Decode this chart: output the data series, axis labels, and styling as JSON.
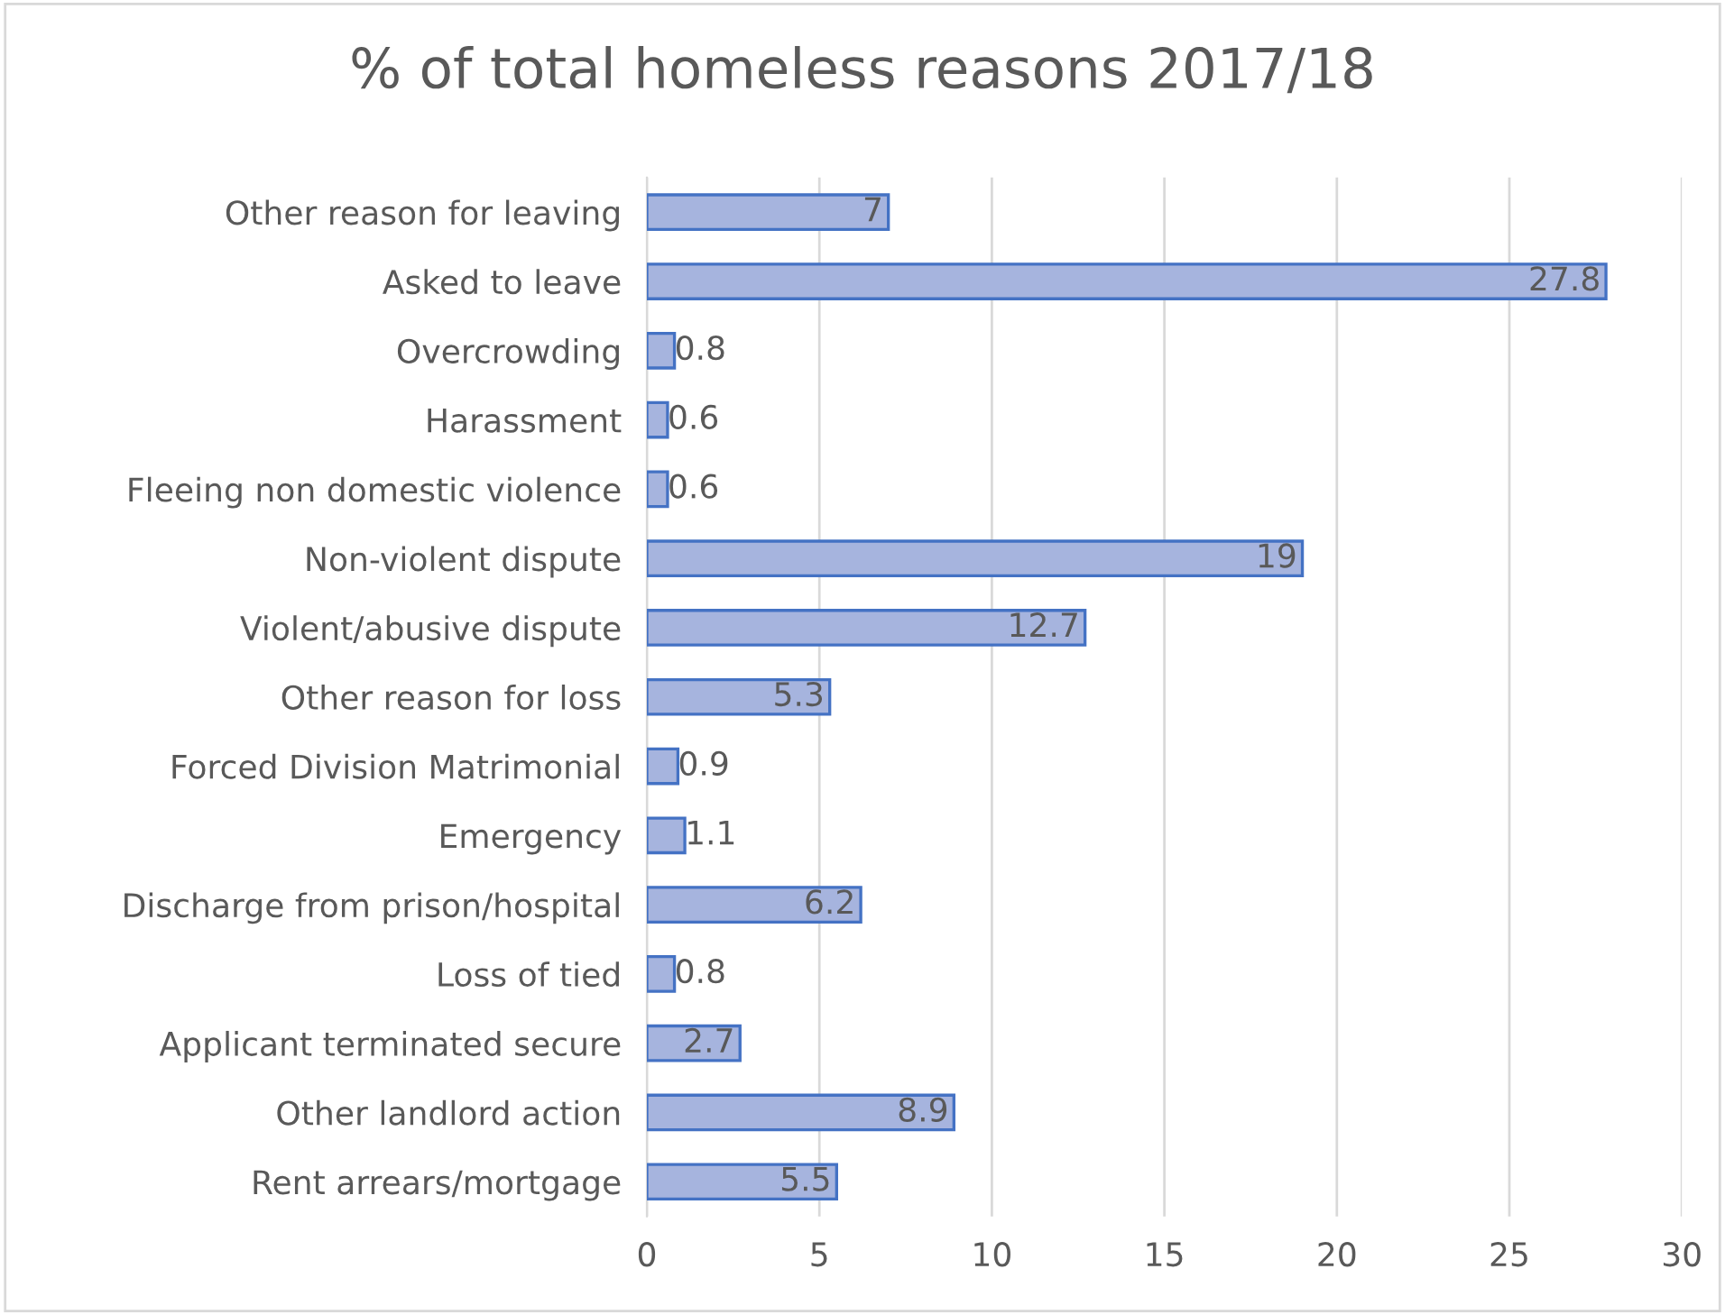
{
  "chart_data": {
    "type": "bar",
    "orientation": "horizontal",
    "title": "% of total homeless reasons 2017/18",
    "categories": [
      "Other reason for leaving",
      "Asked to leave",
      "Overcrowding",
      "Harassment",
      "Fleeing non domestic violence",
      "Non-violent dispute",
      "Violent/abusive dispute",
      "Other reason for loss",
      "Forced Division Matrimonial",
      "Emergency",
      "Discharge from prison/hospital",
      "Loss of tied",
      "Applicant terminated secure",
      "Other landlord action",
      "Rent arrears/mortgage"
    ],
    "values": [
      7,
      27.8,
      0.8,
      0.6,
      0.6,
      19,
      12.7,
      5.3,
      0.9,
      1.1,
      6.2,
      0.8,
      2.7,
      8.9,
      5.5
    ],
    "color": "#a6b4de",
    "xlim": [
      0,
      30
    ],
    "xticks": [
      0,
      5,
      10,
      15,
      20,
      25,
      30
    ],
    "grid": "x",
    "data_labels": true
  }
}
